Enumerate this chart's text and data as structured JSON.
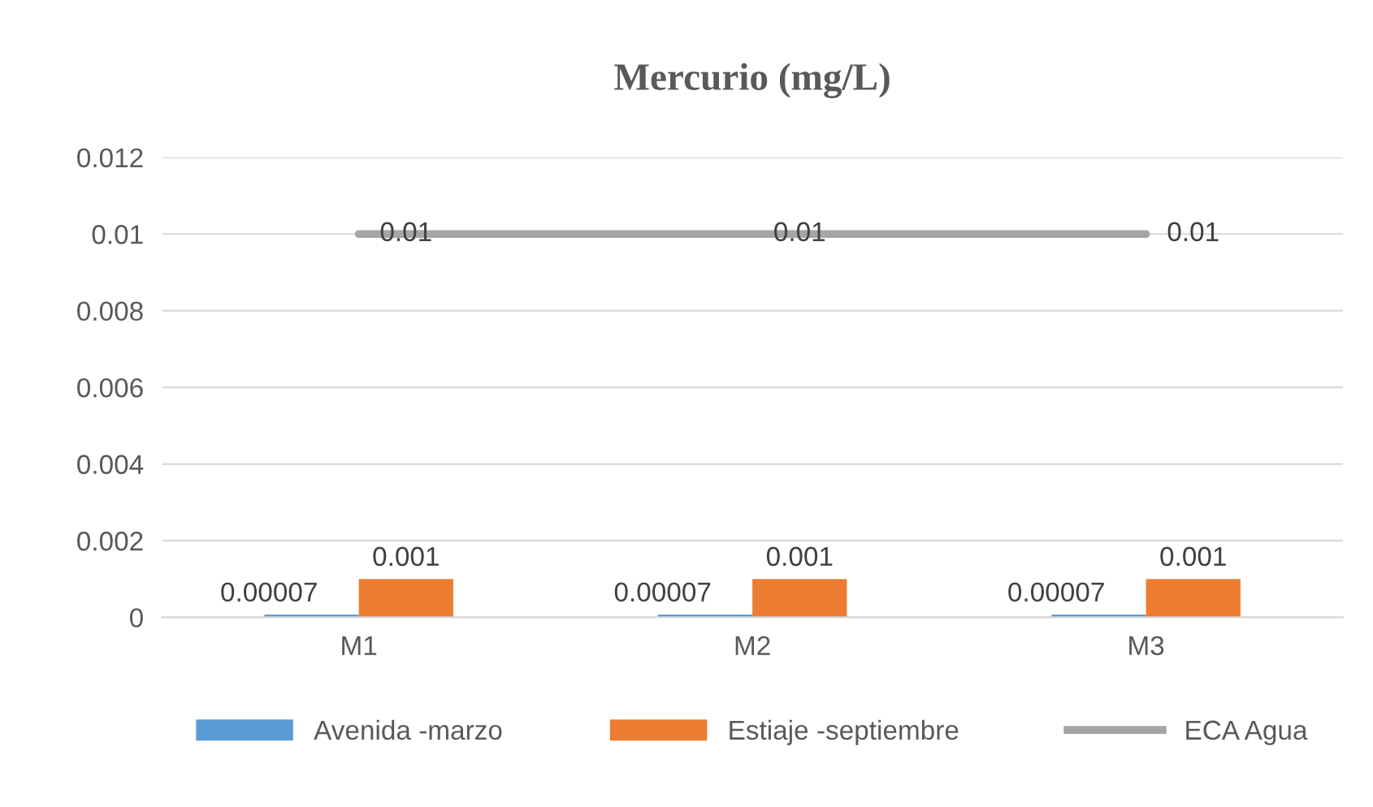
{
  "chart_data": {
    "type": "bar",
    "title": "Mercurio (mg/L)",
    "categories": [
      "M1",
      "M2",
      "M3"
    ],
    "series": [
      {
        "name": "Avenida -marzo",
        "color": "#5b9bd5",
        "values": [
          7e-05,
          7e-05,
          7e-05
        ],
        "value_labels": [
          "0.00007",
          "0.00007",
          "0.00007"
        ]
      },
      {
        "name": "Estiaje -septiembre",
        "color": "#ed7d31",
        "values": [
          0.001,
          0.001,
          0.001
        ],
        "value_labels": [
          "0.001",
          "0.001",
          "0.001"
        ]
      },
      {
        "name": "ECA Agua",
        "type": "line",
        "color": "#a5a5a5",
        "values": [
          0.01,
          0.01,
          0.01
        ],
        "value_labels": [
          "0.01",
          "0.01",
          "0.01"
        ]
      }
    ],
    "ylim": [
      0,
      0.012
    ],
    "yticks": [
      0,
      0.002,
      0.004,
      0.006,
      0.008,
      0.01,
      0.012
    ],
    "grid": "y",
    "legend": "bottom"
  }
}
